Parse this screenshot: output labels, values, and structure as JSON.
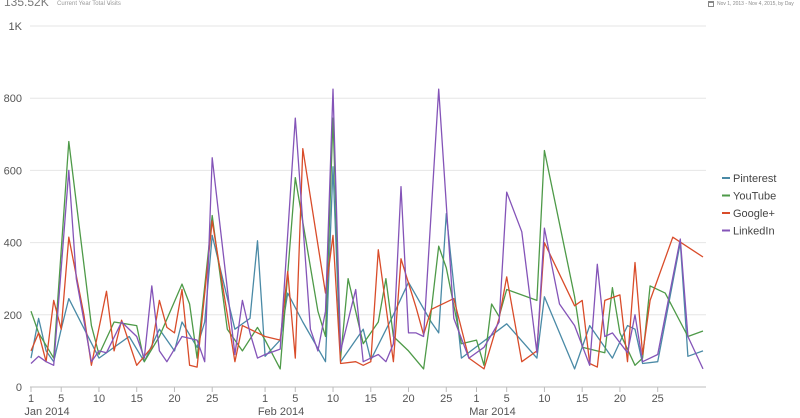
{
  "header": {
    "total": "135.52K",
    "total_label": "Current Year Total Visits",
    "date_range": "Nov 1, 2013 - Nov 4, 2015, by Day"
  },
  "chart_data": {
    "type": "line",
    "x_ticks": [
      {
        "label": "1",
        "day": 0
      },
      {
        "label": "5",
        "day": 4
      },
      {
        "label": "10",
        "day": 9
      },
      {
        "label": "15",
        "day": 14
      },
      {
        "label": "20",
        "day": 19
      },
      {
        "label": "25",
        "day": 24
      },
      {
        "label": "1",
        "day": 31
      },
      {
        "label": "5",
        "day": 35
      },
      {
        "label": "10",
        "day": 40
      },
      {
        "label": "15",
        "day": 45
      },
      {
        "label": "20",
        "day": 50
      },
      {
        "label": "25",
        "day": 55
      },
      {
        "label": "1",
        "day": 59
      },
      {
        "label": "5",
        "day": 63
      },
      {
        "label": "10",
        "day": 68
      },
      {
        "label": "15",
        "day": 73
      },
      {
        "label": "20",
        "day": 78
      },
      {
        "label": "25",
        "day": 83
      }
    ],
    "month_labels": [
      {
        "label": "Jan 2014",
        "day": 0
      },
      {
        "label": "Feb 2014",
        "day": 31
      },
      {
        "label": "Mar 2014",
        "day": 59
      }
    ],
    "x_range": [
      0,
      89
    ],
    "y_ticks": [
      {
        "label": "0",
        "value": 0
      },
      {
        "label": "200",
        "value": 200
      },
      {
        "label": "400",
        "value": 400
      },
      {
        "label": "600",
        "value": 600
      },
      {
        "label": "800",
        "value": 800
      },
      {
        "label": "1K",
        "value": 1000
      }
    ],
    "ylim": [
      0,
      1000
    ],
    "grid": true,
    "legend_position": "right",
    "series": [
      {
        "name": "Pinterest",
        "color": "#4a8aa6",
        "points": [
          [
            0,
            80
          ],
          [
            1,
            190
          ],
          [
            2,
            100
          ],
          [
            3,
            70
          ],
          [
            4,
            160
          ],
          [
            5,
            245
          ],
          [
            9,
            80
          ],
          [
            13,
            140
          ],
          [
            15,
            70
          ],
          [
            17,
            160
          ],
          [
            19,
            100
          ],
          [
            20,
            180
          ],
          [
            22,
            110
          ],
          [
            23,
            180
          ],
          [
            24,
            420
          ],
          [
            27,
            160
          ],
          [
            29,
            190
          ],
          [
            30,
            405
          ],
          [
            31,
            85
          ],
          [
            33,
            130
          ],
          [
            34,
            260
          ],
          [
            36,
            180
          ],
          [
            39,
            70
          ],
          [
            40,
            610
          ],
          [
            41,
            70
          ],
          [
            44,
            160
          ],
          [
            45,
            75
          ],
          [
            48,
            200
          ],
          [
            50,
            290
          ],
          [
            53,
            180
          ],
          [
            54,
            150
          ],
          [
            55,
            480
          ],
          [
            57,
            80
          ],
          [
            63,
            175
          ],
          [
            67,
            80
          ],
          [
            68,
            250
          ],
          [
            72,
            50
          ],
          [
            74,
            170
          ],
          [
            77,
            80
          ],
          [
            79,
            170
          ],
          [
            80,
            160
          ],
          [
            81,
            65
          ],
          [
            83,
            70
          ],
          [
            86,
            400
          ],
          [
            87,
            85
          ],
          [
            89,
            100
          ]
        ]
      },
      {
        "name": "YouTube",
        "color": "#4e9a48",
        "points": [
          [
            0,
            210
          ],
          [
            1,
            150
          ],
          [
            3,
            80
          ],
          [
            5,
            680
          ],
          [
            8,
            170
          ],
          [
            9,
            90
          ],
          [
            11,
            180
          ],
          [
            14,
            170
          ],
          [
            15,
            70
          ],
          [
            17,
            140
          ],
          [
            20,
            285
          ],
          [
            21,
            230
          ],
          [
            22,
            80
          ],
          [
            24,
            475
          ],
          [
            26,
            160
          ],
          [
            28,
            100
          ],
          [
            30,
            165
          ],
          [
            31,
            130
          ],
          [
            33,
            50
          ],
          [
            35,
            580
          ],
          [
            38,
            210
          ],
          [
            39,
            140
          ],
          [
            40,
            745
          ],
          [
            41,
            80
          ],
          [
            42,
            300
          ],
          [
            44,
            120
          ],
          [
            46,
            180
          ],
          [
            47,
            300
          ],
          [
            48,
            140
          ],
          [
            50,
            100
          ],
          [
            52,
            50
          ],
          [
            53,
            210
          ],
          [
            54,
            390
          ],
          [
            55,
            330
          ],
          [
            57,
            120
          ],
          [
            59,
            130
          ],
          [
            60,
            60
          ],
          [
            61,
            230
          ],
          [
            62,
            195
          ],
          [
            63,
            270
          ],
          [
            67,
            240
          ],
          [
            68,
            655
          ],
          [
            72,
            250
          ],
          [
            73,
            110
          ],
          [
            76,
            95
          ],
          [
            77,
            275
          ],
          [
            78,
            150
          ],
          [
            80,
            60
          ],
          [
            81,
            80
          ],
          [
            82,
            280
          ],
          [
            84,
            260
          ],
          [
            87,
            140
          ],
          [
            89,
            155
          ]
        ]
      },
      {
        "name": "Google+",
        "color": "#d94c2a",
        "points": [
          [
            0,
            100
          ],
          [
            1,
            150
          ],
          [
            2,
            70
          ],
          [
            3,
            240
          ],
          [
            4,
            160
          ],
          [
            5,
            415
          ],
          [
            7,
            200
          ],
          [
            8,
            60
          ],
          [
            10,
            265
          ],
          [
            11,
            100
          ],
          [
            12,
            185
          ],
          [
            14,
            60
          ],
          [
            16,
            110
          ],
          [
            17,
            240
          ],
          [
            18,
            165
          ],
          [
            19,
            150
          ],
          [
            20,
            270
          ],
          [
            21,
            60
          ],
          [
            22,
            55
          ],
          [
            24,
            460
          ],
          [
            27,
            70
          ],
          [
            28,
            170
          ],
          [
            31,
            140
          ],
          [
            33,
            130
          ],
          [
            34,
            320
          ],
          [
            35,
            80
          ],
          [
            36,
            660
          ],
          [
            39,
            260
          ],
          [
            40,
            420
          ],
          [
            41,
            65
          ],
          [
            43,
            70
          ],
          [
            44,
            60
          ],
          [
            45,
            70
          ],
          [
            46,
            380
          ],
          [
            48,
            70
          ],
          [
            49,
            355
          ],
          [
            51,
            220
          ],
          [
            52,
            145
          ],
          [
            53,
            215
          ],
          [
            56,
            245
          ],
          [
            58,
            80
          ],
          [
            60,
            50
          ],
          [
            62,
            190
          ],
          [
            63,
            305
          ],
          [
            65,
            70
          ],
          [
            67,
            100
          ],
          [
            68,
            400
          ],
          [
            72,
            225
          ],
          [
            73,
            240
          ],
          [
            74,
            65
          ],
          [
            75,
            55
          ],
          [
            76,
            240
          ],
          [
            78,
            255
          ],
          [
            79,
            70
          ],
          [
            80,
            345
          ],
          [
            81,
            90
          ],
          [
            82,
            240
          ],
          [
            85,
            415
          ],
          [
            89,
            360
          ]
        ]
      },
      {
        "name": "LinkedIn",
        "color": "#8454b8",
        "points": [
          [
            0,
            65
          ],
          [
            1,
            85
          ],
          [
            2,
            70
          ],
          [
            3,
            60
          ],
          [
            5,
            600
          ],
          [
            6,
            300
          ],
          [
            8,
            70
          ],
          [
            9,
            100
          ],
          [
            10,
            95
          ],
          [
            12,
            180
          ],
          [
            14,
            140
          ],
          [
            15,
            80
          ],
          [
            16,
            280
          ],
          [
            17,
            100
          ],
          [
            18,
            70
          ],
          [
            20,
            140
          ],
          [
            22,
            130
          ],
          [
            23,
            70
          ],
          [
            24,
            635
          ],
          [
            27,
            90
          ],
          [
            28,
            240
          ],
          [
            29,
            150
          ],
          [
            30,
            80
          ],
          [
            31,
            90
          ],
          [
            33,
            105
          ],
          [
            35,
            745
          ],
          [
            37,
            160
          ],
          [
            38,
            100
          ],
          [
            39,
            210
          ],
          [
            40,
            825
          ],
          [
            41,
            100
          ],
          [
            43,
            270
          ],
          [
            44,
            70
          ],
          [
            45,
            80
          ],
          [
            46,
            90
          ],
          [
            47,
            70
          ],
          [
            48,
            120
          ],
          [
            49,
            555
          ],
          [
            50,
            150
          ],
          [
            51,
            150
          ],
          [
            52,
            140
          ],
          [
            54,
            825
          ],
          [
            56,
            190
          ],
          [
            58,
            80
          ],
          [
            60,
            110
          ],
          [
            62,
            180
          ],
          [
            63,
            540
          ],
          [
            65,
            430
          ],
          [
            67,
            95
          ],
          [
            68,
            440
          ],
          [
            70,
            230
          ],
          [
            72,
            170
          ],
          [
            74,
            60
          ],
          [
            75,
            340
          ],
          [
            76,
            140
          ],
          [
            77,
            150
          ],
          [
            79,
            95
          ],
          [
            80,
            200
          ],
          [
            81,
            70
          ],
          [
            83,
            90
          ],
          [
            86,
            410
          ],
          [
            87,
            140
          ],
          [
            89,
            50
          ]
        ]
      }
    ]
  }
}
